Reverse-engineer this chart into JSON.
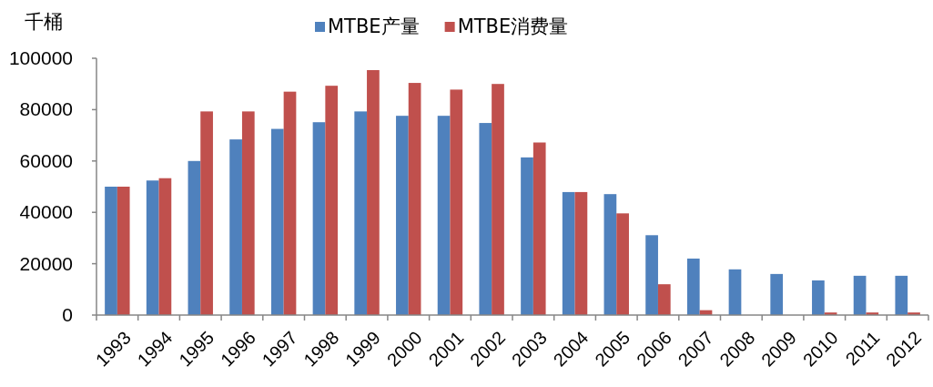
{
  "chart_data": {
    "type": "bar",
    "ylabel": "千桶",
    "categories": [
      "1993",
      "1994",
      "1995",
      "1996",
      "1997",
      "1998",
      "1999",
      "2000",
      "2001",
      "2002",
      "2003",
      "2004",
      "2005",
      "2006",
      "2007",
      "2008",
      "2009",
      "2010",
      "2011",
      "2012"
    ],
    "series": [
      {
        "name": "MTBE产量",
        "color": "#4f81bd",
        "values": [
          50000,
          52400,
          60000,
          68400,
          72500,
          75100,
          79300,
          77600,
          77600,
          74800,
          61400,
          47900,
          47100,
          31100,
          22000,
          17800,
          16000,
          13500,
          15300,
          15300
        ]
      },
      {
        "name": "MTBE消费量",
        "color": "#c0504d",
        "values": [
          50000,
          53300,
          79300,
          79300,
          87000,
          89300,
          95400,
          90400,
          87800,
          90000,
          67200,
          47900,
          39600,
          12000,
          1900,
          null,
          null,
          1000,
          1000,
          1000
        ]
      }
    ],
    "ylim": [
      0,
      100000
    ],
    "yticks": [
      0,
      20000,
      40000,
      60000,
      80000,
      100000
    ],
    "legend": "top",
    "grid": false
  }
}
